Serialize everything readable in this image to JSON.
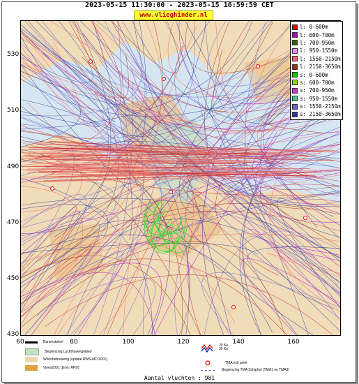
{
  "header": {
    "title": "2023-05-15 11:30:00 - 2023-05-15 16:59:59 CET",
    "site": "www.vlieghinder.nl"
  },
  "axes": {
    "y_ticks": [
      "530",
      "510",
      "490",
      "470",
      "450",
      "430"
    ],
    "x_ticks": [
      "60",
      "80",
      "100",
      "120",
      "140",
      "160"
    ]
  },
  "legend": [
    {
      "label": "l: 0-600m",
      "color": "#dd0000"
    },
    {
      "label": "l: 600-700m",
      "color": "#aa00cc"
    },
    {
      "label": "l: 700-950m",
      "color": "#336600"
    },
    {
      "label": "l: 950-1550m",
      "color": "#ee88ee"
    },
    {
      "label": "l: 1550-2150m",
      "color": "#ee6666"
    },
    {
      "label": "l: 2150-3650m",
      "color": "#993311"
    },
    {
      "label": "s: 0-600m",
      "color": "#00cc00"
    },
    {
      "label": "s: 600-700m",
      "color": "#88dd00"
    },
    {
      "label": "s: 700-950m",
      "color": "#cc33cc"
    },
    {
      "label": "s: 950-1550m",
      "color": "#44cc88"
    },
    {
      "label": "s: 1550-2150m",
      "color": "#6666cc"
    },
    {
      "label": "s: 2150-3650m",
      "color": "#333399"
    }
  ],
  "bottom_legend": {
    "runway": "Banenstelsel",
    "airport_boundary": "Begrenzing Luchthavengebied",
    "housing": "Woonbebouwing (update RWS-MD 2001)",
    "vinex": "Vinex2001 (bron: RPD)",
    "noise_label_1": "20 Ke",
    "noise_label_2": "35 Ke",
    "tma_exit": "TMA exit point",
    "tma_boundary": "Begrenzing TMA Schiphol  (TMA1 en TMA3)"
  },
  "footer": {
    "flights": "Aantal vluchten : 981"
  },
  "colors": {
    "map_bg": "#d6e6f0",
    "land": "#f3ddb8",
    "green_zone": "#c8dcc8"
  }
}
